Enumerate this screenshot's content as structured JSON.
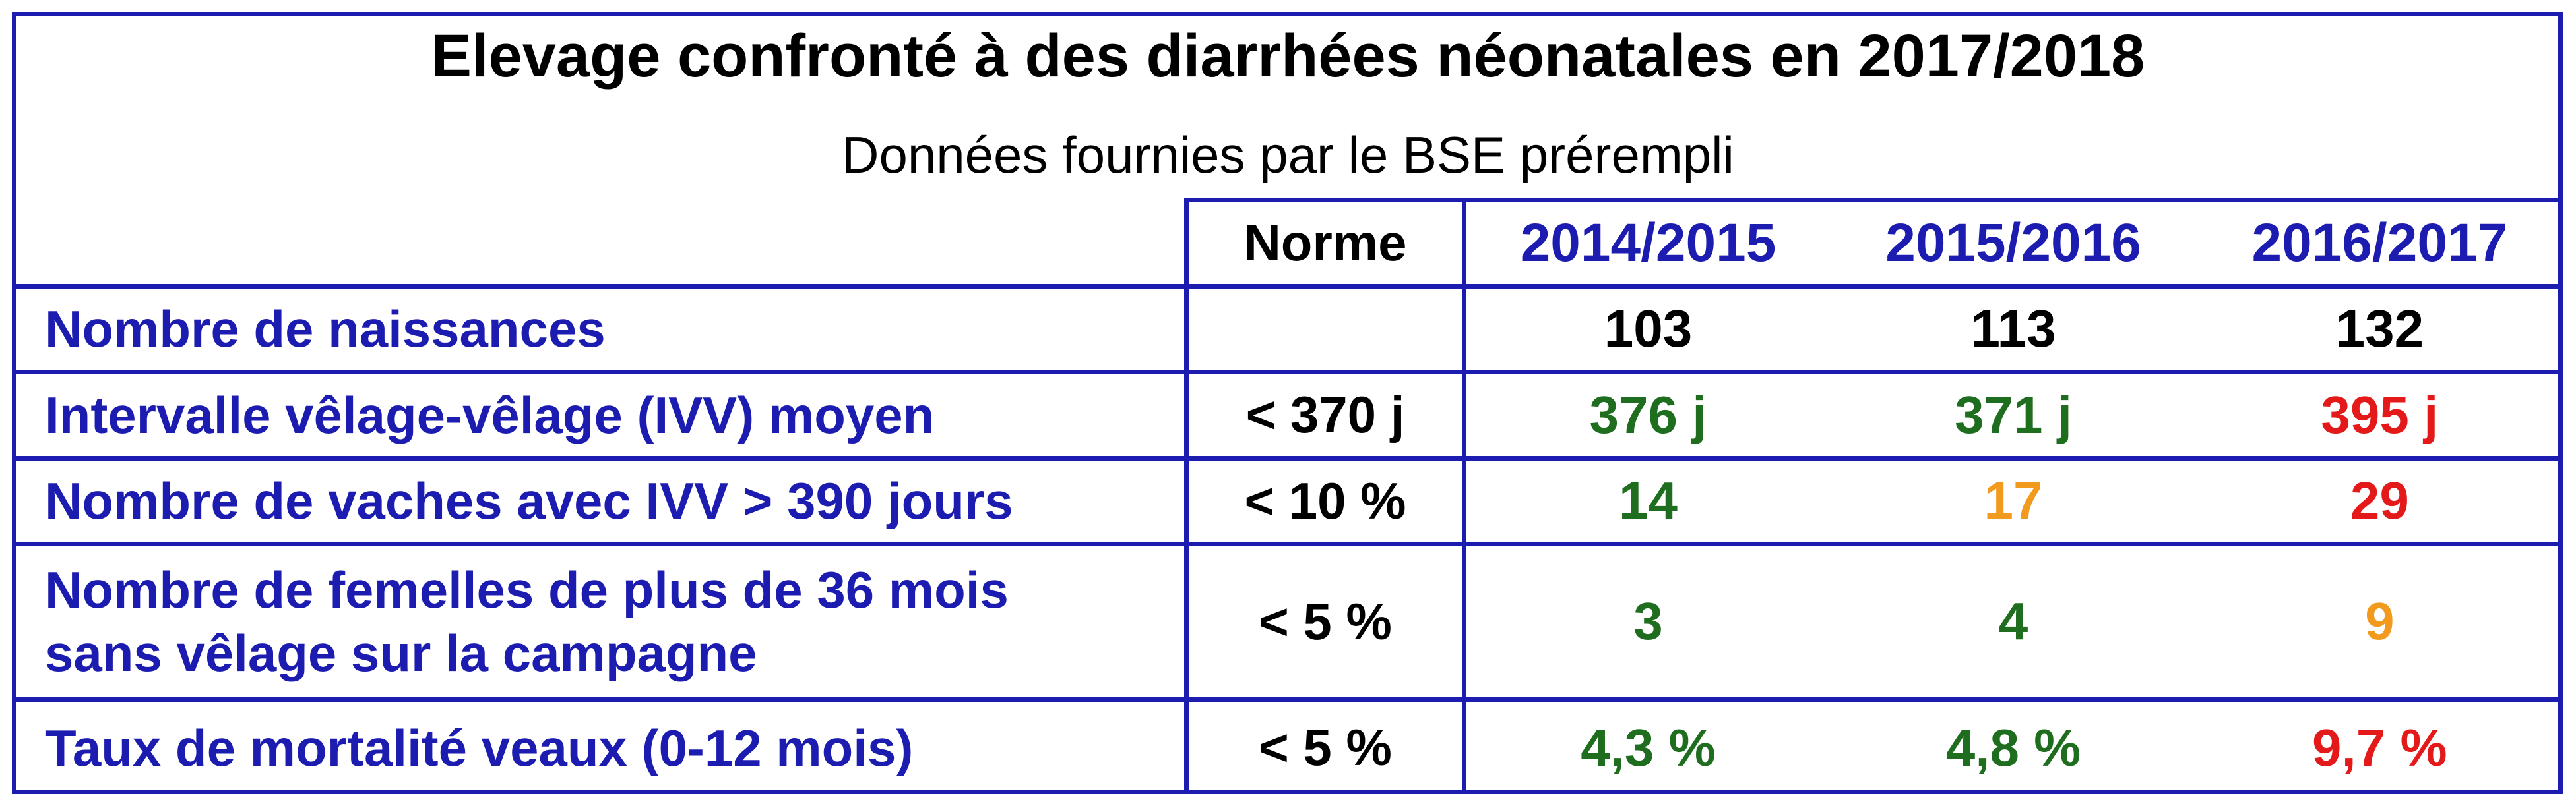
{
  "title": "Elevage confronté à des diarrhées néonatales en 2017/2018",
  "subtitle": "Données fournies par le BSE prérempli",
  "header": {
    "norme": "Norme",
    "years": [
      "2014/2015",
      "2015/2016",
      "2016/2017"
    ]
  },
  "colors": {
    "border": "#1c1cb0",
    "label": "#1c1cb0",
    "black": "#000000",
    "green": "#1f6e1f",
    "orange": "#f29a1e",
    "red": "#e41a1a"
  },
  "rows": [
    {
      "label": "Nombre de naissances",
      "norme": "",
      "values": [
        {
          "text": "103",
          "status": "black"
        },
        {
          "text": "113",
          "status": "black"
        },
        {
          "text": "132",
          "status": "black"
        }
      ]
    },
    {
      "label": "Intervalle vêlage-vêlage (IVV) moyen",
      "norme": "< 370 j",
      "values": [
        {
          "text": "376 j",
          "status": "green"
        },
        {
          "text": "371 j",
          "status": "green"
        },
        {
          "text": "395 j",
          "status": "red"
        }
      ]
    },
    {
      "label": "Nombre de vaches avec IVV > 390 jours",
      "norme": "< 10 %",
      "values": [
        {
          "text": "14",
          "status": "green"
        },
        {
          "text": "17",
          "status": "orange"
        },
        {
          "text": "29",
          "status": "red"
        }
      ]
    },
    {
      "label_lines": [
        "Nombre de femelles de plus de 36 mois",
        "sans vêlage sur la campagne"
      ],
      "norme": "< 5 %",
      "values": [
        {
          "text": "3",
          "status": "green"
        },
        {
          "text": "4",
          "status": "green"
        },
        {
          "text": "9",
          "status": "orange"
        }
      ]
    },
    {
      "label": "Taux de mortalité veaux (0-12 mois)",
      "norme": "< 5 %",
      "values": [
        {
          "text": "4,3 %",
          "status": "green"
        },
        {
          "text": "4,8 %",
          "status": "green"
        },
        {
          "text": "9,7 %",
          "status": "red"
        }
      ]
    }
  ]
}
